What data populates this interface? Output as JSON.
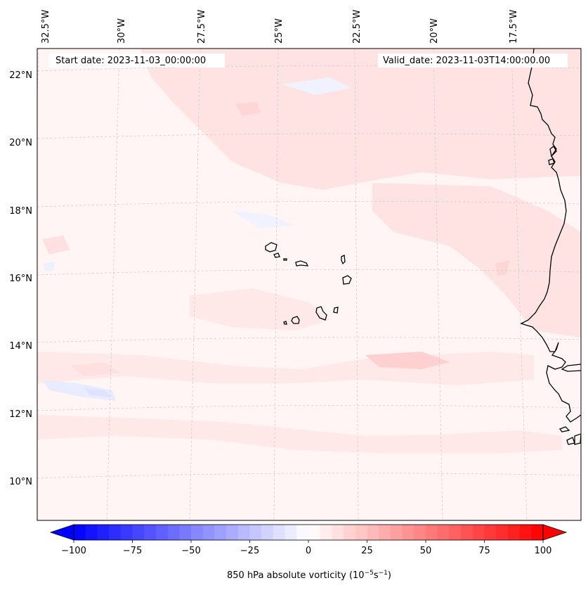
{
  "map": {
    "start_date_label": "Start date: 2023-11-03_00:00:00",
    "valid_date_label": "Valid_date: 2023-11-03T14:00:00.00",
    "lon_labels": [
      "32.5°W",
      "30°W",
      "27.5°W",
      "25°W",
      "22.5°W",
      "20°W",
      "17.5°W"
    ],
    "lat_labels": [
      "22°N",
      "20°N",
      "18°N",
      "16°N",
      "14°N",
      "12°N",
      "10°N"
    ],
    "colors": {
      "background_field": "#fff5f5",
      "pos_light": "#ffe0e0",
      "pos_med": "#ffc8c8",
      "neg_light": "#eef0ff",
      "neg_med": "#dcdcff",
      "coastline": "#000000",
      "gridline": "#c8c8c8"
    }
  },
  "colorbar": {
    "title_prefix": "850 hPa absolute vorticity (10",
    "title_exp1": "−5",
    "title_mid": "s",
    "title_exp2": "−1",
    "title_suffix": ")",
    "vmin": -100,
    "vmax": 100,
    "step": 5,
    "tick_values": [
      -100,
      -75,
      -50,
      -25,
      0,
      25,
      50,
      75,
      100
    ],
    "tick_labels": [
      "−100",
      "−75",
      "−50",
      "−25",
      "0",
      "25",
      "50",
      "75",
      "100"
    ],
    "colormap": "bwr"
  }
}
